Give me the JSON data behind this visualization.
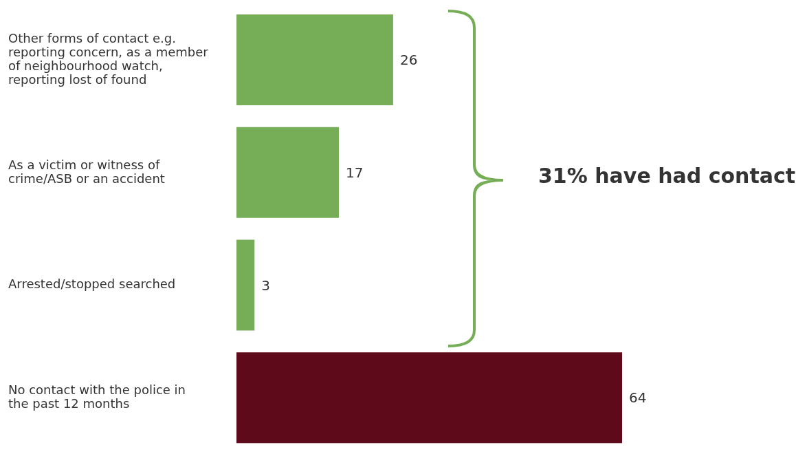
{
  "chart_data": {
    "type": "bar",
    "orientation": "horizontal",
    "categories": [
      "Other forms of contact e.g. reporting concern, as a member of neighbourhood watch, reporting lost of found",
      "As a victim or witness of crime/ASB or an accident",
      "Arrested/stopped searched",
      "No contact with the police in the past 12 months"
    ],
    "values": [
      26,
      17,
      3,
      64
    ],
    "colors": [
      "#76ad57",
      "#76ad57",
      "#76ad57",
      "#5e0a1a"
    ],
    "data_labels": true,
    "annotations": [
      "31% have had contact"
    ]
  }
}
